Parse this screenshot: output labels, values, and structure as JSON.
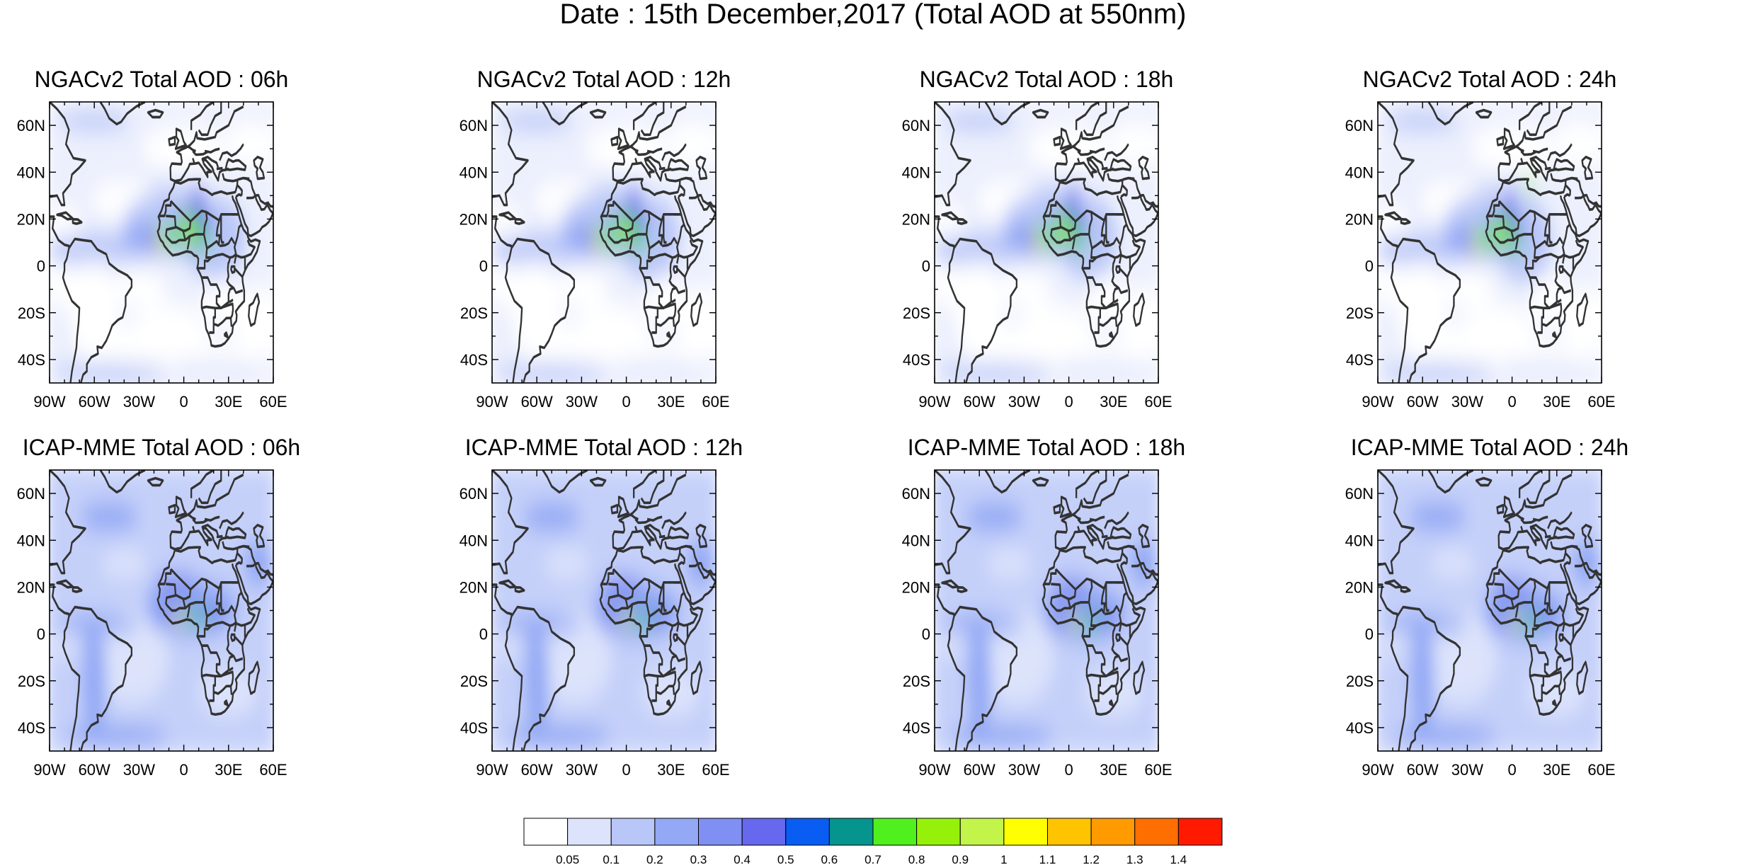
{
  "title": "Date : 15th December,2017 (Total AOD at 550nm)",
  "panels": [
    {
      "title": "NGACv2 Total AOD : 06h"
    },
    {
      "title": "NGACv2 Total AOD : 12h"
    },
    {
      "title": "NGACv2 Total AOD : 18h"
    },
    {
      "title": "NGACv2 Total AOD : 24h"
    },
    {
      "title": "ICAP-MME Total AOD : 06h"
    },
    {
      "title": "ICAP-MME Total AOD : 12h"
    },
    {
      "title": "ICAP-MME Total AOD : 18h"
    },
    {
      "title": "ICAP-MME Total AOD : 24h"
    }
  ],
  "map": {
    "lon_range": [
      -90,
      60
    ],
    "lat_range": [
      -50,
      70
    ],
    "lat_ticks": [
      {
        "value": 60,
        "label": "60N"
      },
      {
        "value": 40,
        "label": "40N"
      },
      {
        "value": 20,
        "label": "20N"
      },
      {
        "value": 0,
        "label": "0"
      },
      {
        "value": -20,
        "label": "20S"
      },
      {
        "value": -40,
        "label": "40S"
      }
    ],
    "lon_ticks": [
      {
        "value": -90,
        "label": "90W"
      },
      {
        "value": -60,
        "label": "60W"
      },
      {
        "value": -30,
        "label": "30W"
      },
      {
        "value": 0,
        "label": "0"
      },
      {
        "value": 30,
        "label": "30E"
      },
      {
        "value": 60,
        "label": "60E"
      }
    ]
  },
  "colorbar": {
    "colors": [
      "#ffffff",
      "#dce3fb",
      "#b9c6f8",
      "#93a9f5",
      "#7f8ff2",
      "#6668ee",
      "#0a5df3",
      "#06948f",
      "#50f01e",
      "#95f10a",
      "#c2f44a",
      "#ffff00",
      "#ffc400",
      "#ff9a00",
      "#ff6e00",
      "#ff1a00"
    ],
    "labels": [
      "0.05",
      "0.1",
      "0.2",
      "0.3",
      "0.4",
      "0.5",
      "0.6",
      "0.7",
      "0.8",
      "0.9",
      "1",
      "1.1",
      "1.2",
      "1.3",
      "1.4"
    ]
  }
}
